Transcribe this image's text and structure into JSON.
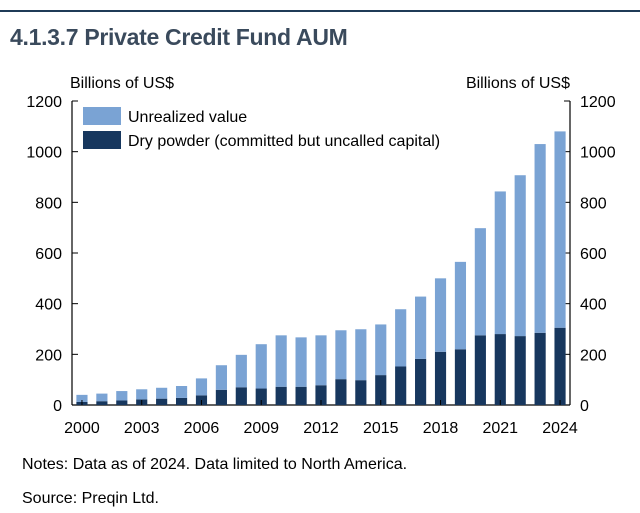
{
  "title": "4.1.3.7 Private Credit Fund AUM",
  "notes": "Notes: Data as of 2024. Data limited to North America.",
  "source": "Source: Preqin Ltd.",
  "colors": {
    "unrealized": "#7aa3d4",
    "dry_powder": "#17375e",
    "axis": "#000000",
    "title": "#3a4a5c"
  },
  "chart_data": {
    "type": "bar",
    "stacked": true,
    "categories": [
      "2000",
      "2001",
      "2002",
      "2003",
      "2004",
      "2005",
      "2006",
      "2007",
      "2008",
      "2009",
      "2010",
      "2011",
      "2012",
      "2013",
      "2014",
      "2015",
      "2016",
      "2017",
      "2018",
      "2019",
      "2020",
      "2021",
      "2022",
      "2023",
      "2024"
    ],
    "x_tick_labels": [
      "2000",
      "2003",
      "2006",
      "2009",
      "2012",
      "2015",
      "2018",
      "2021",
      "2024"
    ],
    "series": [
      {
        "name": "Dry powder (committed but uncalled capital)",
        "values": [
          12,
          15,
          18,
          22,
          25,
          28,
          38,
          60,
          70,
          65,
          72,
          72,
          78,
          102,
          98,
          118,
          152,
          182,
          210,
          220,
          275,
          280,
          272,
          285,
          305
        ]
      },
      {
        "name": "Unrealized value",
        "values": [
          28,
          30,
          37,
          40,
          43,
          47,
          67,
          97,
          128,
          175,
          203,
          195,
          197,
          193,
          201,
          200,
          226,
          246,
          290,
          345,
          423,
          563,
          635,
          745,
          775
        ]
      }
    ],
    "legend": [
      "Unrealized value",
      "Dry powder (committed but uncalled capital)"
    ],
    "ylabel_left": "Billions of US$",
    "ylabel_right": "Billions of US$",
    "ylim": [
      0,
      1200
    ],
    "yticks": [
      0,
      200,
      400,
      600,
      800,
      1000,
      1200
    ]
  }
}
